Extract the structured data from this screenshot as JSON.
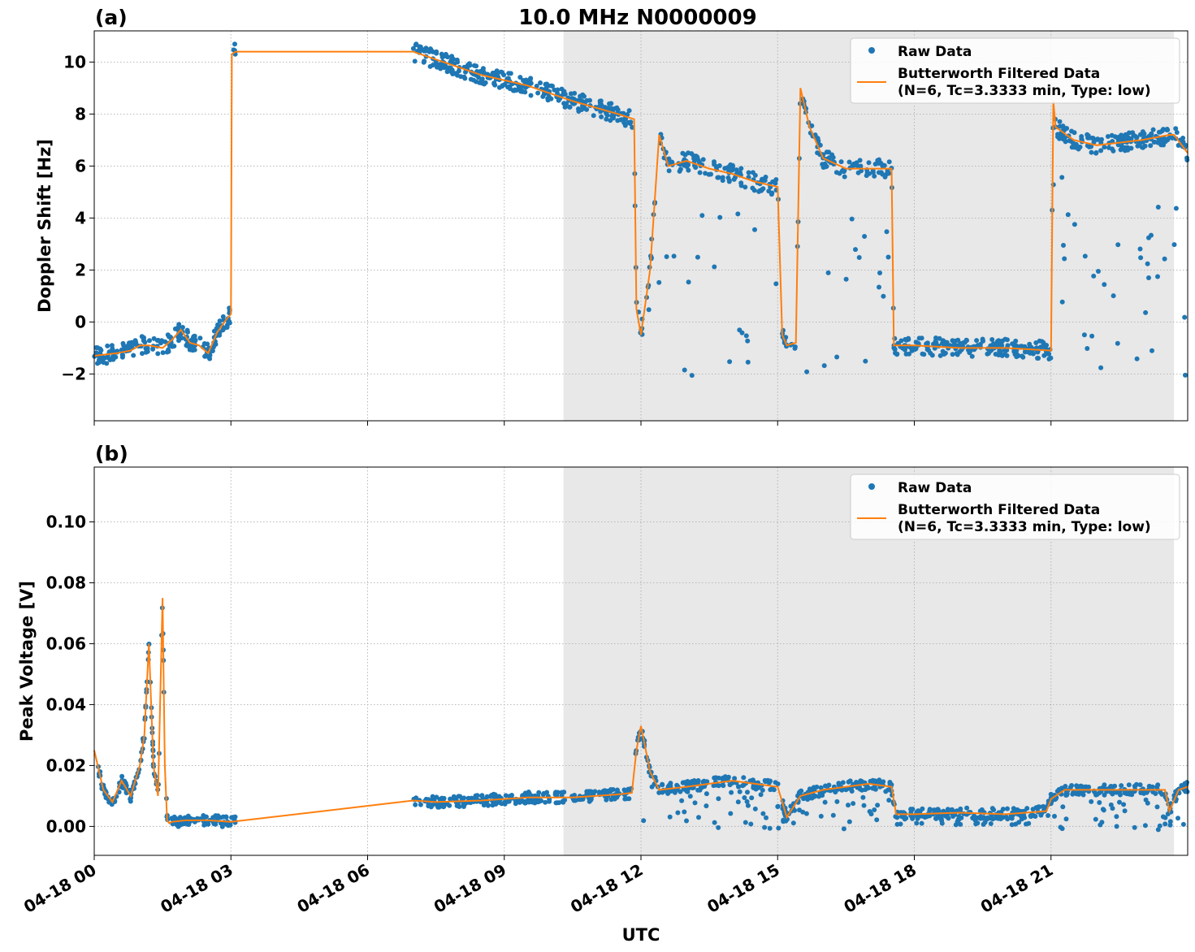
{
  "figure": {
    "title": "10.0 MHz N0000009",
    "xlabel": "UTC"
  },
  "colors": {
    "raw": "#1f77b4",
    "filtered": "#ff7f0e",
    "shade": "#e8e8e8"
  },
  "chart_data": [
    {
      "type": "scatter",
      "panel_label": "(a)",
      "ylabel": "Doppler Shift [Hz]",
      "x_unit": "hours UTC on 04-18",
      "xlim": [
        0,
        24
      ],
      "ylim": [
        -3.8,
        11.2
      ],
      "x_ticks": [
        0,
        3,
        6,
        9,
        12,
        15,
        18,
        21
      ],
      "y_ticks": [
        -2,
        0,
        2,
        4,
        6,
        8,
        10
      ],
      "y_tick_labels": [
        "−2",
        "0",
        "2",
        "4",
        "6",
        "8",
        "10"
      ],
      "shaded_region": [
        10.3,
        23.7
      ],
      "grid": true,
      "legend": {
        "position": "upper right",
        "raw": "Raw Data",
        "filtered_line1": "Butterworth Filtered Data",
        "filtered_line2": "(N=6, Tc=3.3333 min, Type: low)"
      },
      "series": [
        {
          "name": "Butterworth Filtered Data",
          "kind": "line",
          "x": [
            0,
            0.5,
            0.8,
            1.0,
            1.2,
            1.5,
            1.7,
            1.9,
            2.1,
            2.3,
            2.5,
            2.7,
            2.9,
            3.0,
            3.02,
            3.1,
            7.0,
            7.5,
            8.5,
            9.5,
            10.5,
            11.5,
            11.85,
            11.9,
            12.0,
            12.2,
            12.4,
            12.6,
            13.0,
            13.5,
            14.0,
            14.5,
            15.0,
            15.1,
            15.2,
            15.4,
            15.5,
            15.7,
            16.0,
            16.5,
            17.0,
            17.5,
            17.55,
            18.0,
            19.0,
            20.0,
            21.0,
            21.05,
            21.1,
            21.5,
            22.0,
            22.5,
            23.0,
            23.6,
            23.7,
            24.0
          ],
          "y": [
            -1.3,
            -1.2,
            -1.1,
            -0.9,
            -0.9,
            -1.0,
            -0.7,
            -0.3,
            -0.8,
            -0.9,
            -1.2,
            -0.4,
            0.1,
            0.3,
            10.3,
            10.4,
            10.4,
            10.1,
            9.5,
            9.1,
            8.5,
            8.0,
            7.8,
            0.5,
            -0.5,
            2.0,
            7.2,
            6.0,
            6.2,
            5.9,
            5.7,
            5.4,
            5.2,
            -0.5,
            -0.9,
            -0.8,
            9.0,
            7.5,
            6.3,
            5.9,
            5.9,
            5.9,
            -0.9,
            -0.9,
            -1.0,
            -1.0,
            -1.1,
            8.5,
            7.5,
            7.0,
            6.8,
            6.9,
            7.0,
            7.2,
            7.2,
            6.5
          ]
        },
        {
          "name": "Raw Data",
          "kind": "points"
        }
      ]
    },
    {
      "type": "scatter",
      "panel_label": "(b)",
      "ylabel": "Peak Voltage [V]",
      "x_unit": "hours UTC on 04-18",
      "xlim": [
        0,
        24
      ],
      "ylim": [
        -0.0095,
        0.118
      ],
      "x_ticks": [
        0,
        3,
        6,
        9,
        12,
        15,
        18,
        21
      ],
      "x_tick_labels": [
        "04-18 00",
        "04-18 03",
        "04-18 06",
        "04-18 09",
        "04-18 12",
        "04-18 15",
        "04-18 18",
        "04-18 21"
      ],
      "y_ticks": [
        0.0,
        0.02,
        0.04,
        0.06,
        0.08,
        0.1
      ],
      "y_tick_labels": [
        "0.00",
        "0.02",
        "0.04",
        "0.06",
        "0.08",
        "0.10"
      ],
      "shaded_region": [
        10.3,
        23.7
      ],
      "grid": true,
      "legend": {
        "position": "upper right",
        "raw": "Raw Data",
        "filtered_line1": "Butterworth Filtered Data",
        "filtered_line2": "(N=6, Tc=3.3333 min, Type: low)"
      },
      "series": [
        {
          "name": "Butterworth Filtered Data",
          "kind": "line",
          "x": [
            0,
            0.2,
            0.4,
            0.6,
            0.8,
            1.0,
            1.1,
            1.2,
            1.3,
            1.4,
            1.5,
            1.55,
            1.6,
            1.65,
            1.7,
            2.0,
            2.5,
            3.0,
            7.0,
            7.5,
            8.5,
            9.5,
            10.5,
            11.5,
            11.8,
            11.9,
            12.0,
            12.2,
            12.4,
            13.0,
            13.5,
            14.0,
            14.5,
            15.0,
            15.2,
            15.5,
            16.0,
            16.5,
            17.0,
            17.5,
            17.6,
            18.0,
            19.0,
            20.0,
            20.9,
            21.0,
            21.3,
            22.0,
            23.0,
            23.5,
            23.6,
            23.8,
            24.0
          ],
          "y": [
            0.025,
            0.012,
            0.008,
            0.015,
            0.01,
            0.02,
            0.03,
            0.06,
            0.02,
            0.01,
            0.075,
            0.02,
            0.002,
            0.001,
            0.0015,
            0.002,
            0.002,
            0.0015,
            0.0085,
            0.008,
            0.0085,
            0.0095,
            0.0095,
            0.0105,
            0.011,
            0.025,
            0.033,
            0.018,
            0.012,
            0.013,
            0.014,
            0.015,
            0.014,
            0.013,
            0.003,
            0.01,
            0.012,
            0.013,
            0.014,
            0.013,
            0.004,
            0.004,
            0.0045,
            0.004,
            0.005,
            0.009,
            0.012,
            0.012,
            0.012,
            0.012,
            0.005,
            0.012,
            0.013
          ]
        },
        {
          "name": "Raw Data",
          "kind": "points"
        }
      ]
    }
  ]
}
